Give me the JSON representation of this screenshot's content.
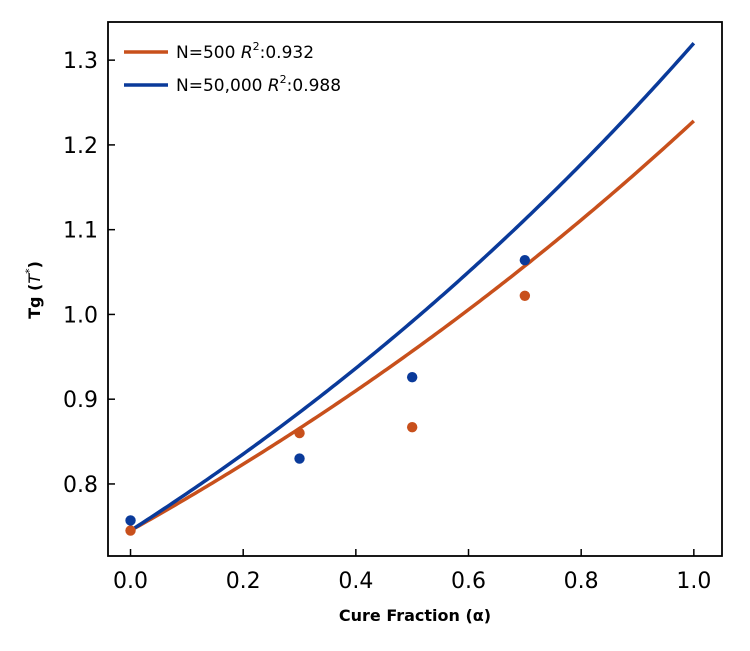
{
  "chart_data": {
    "type": "scatter",
    "title": "",
    "xlabel": "Cure Fraction (α)",
    "ylabel_main": "Tg (",
    "ylabel_sym": "T",
    "ylabel_sup": "*",
    "ylabel_close": ")",
    "xlim": [
      -0.04,
      1.05
    ],
    "ylim": [
      0.715,
      1.345
    ],
    "xticks": [
      0.0,
      0.2,
      0.4,
      0.6,
      0.8,
      1.0
    ],
    "xtick_labels": [
      "0.0",
      "0.2",
      "0.4",
      "0.6",
      "0.8",
      "1.0"
    ],
    "yticks": [
      0.8,
      0.9,
      1.0,
      1.1,
      1.2,
      1.3
    ],
    "ytick_labels": [
      "0.8",
      "0.9",
      "1.0",
      "1.1",
      "1.2",
      "1.3"
    ],
    "legend_position": "top-left",
    "series": [
      {
        "name": "N=500",
        "legend_prefix": "N=500 ",
        "r2_symbol": "R",
        "r2_exp": "2",
        "r2_value": ":0.932",
        "color": "#c8501c",
        "points": [
          [
            0.0,
            0.745
          ],
          [
            0.3,
            0.86
          ],
          [
            0.5,
            0.867
          ],
          [
            0.7,
            1.022
          ]
        ],
        "fit": {
          "a": 0.745,
          "b": 0.5
        }
      },
      {
        "name": "N=50,000",
        "legend_prefix": "N=50,000 ",
        "r2_symbol": "R",
        "r2_exp": "2",
        "r2_value": ":0.988",
        "color": "#0a3a9a",
        "points": [
          [
            0.0,
            0.757
          ],
          [
            0.3,
            0.83
          ],
          [
            0.5,
            0.926
          ],
          [
            0.7,
            1.064
          ]
        ],
        "fit": {
          "a": 0.745,
          "b": 0.572
        }
      }
    ]
  }
}
